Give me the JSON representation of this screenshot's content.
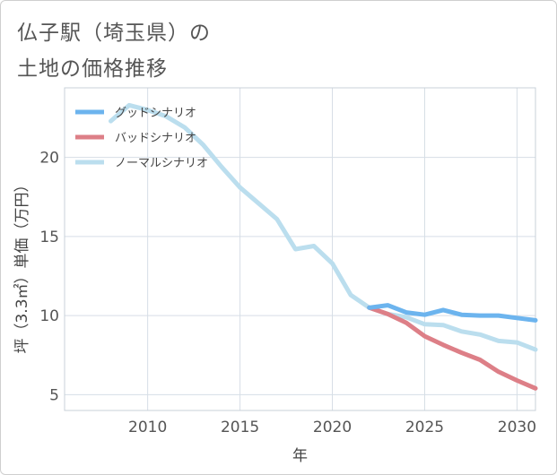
{
  "colors": {
    "good": "#6cb4ee",
    "bad": "#dd7f87",
    "normal": "#bbdeee",
    "grid": "#d6dee6",
    "axis": "#555555"
  },
  "chart_data": {
    "type": "line",
    "title": [
      "仏子駅（埼玉県）の",
      "土地の価格推移"
    ],
    "xlabel": "年",
    "ylabel": "坪（3.3㎡）単価（万円）",
    "xlim": [
      2005.5,
      2031
    ],
    "ylim": [
      4,
      24.4
    ],
    "xticks": [
      2010,
      2015,
      2020,
      2025,
      2030
    ],
    "yticks": [
      5,
      10,
      15,
      20
    ],
    "grid": true,
    "legend_position": "top-left",
    "series": [
      {
        "name": "グッドシナリオ",
        "color_key": "good",
        "x": [
          2022,
          2023,
          2024,
          2025,
          2026,
          2027,
          2028,
          2029,
          2030,
          2031
        ],
        "y": [
          10.5,
          10.65,
          10.2,
          10.05,
          10.35,
          10.05,
          10.0,
          10.0,
          9.85,
          9.7
        ]
      },
      {
        "name": "バッドシナリオ",
        "color_key": "bad",
        "x": [
          2022,
          2023,
          2024,
          2025,
          2026,
          2027,
          2028,
          2029,
          2030,
          2031
        ],
        "y": [
          10.5,
          10.1,
          9.55,
          8.7,
          8.15,
          7.65,
          7.2,
          6.45,
          5.9,
          5.4
        ]
      },
      {
        "name": "ノーマルシナリオ",
        "color_key": "normal",
        "x": [
          2008,
          2009,
          2010,
          2011,
          2012,
          2013,
          2014,
          2015,
          2016,
          2017,
          2018,
          2019,
          2020,
          2021,
          2022,
          2023,
          2024,
          2025,
          2026,
          2027,
          2028,
          2029,
          2030,
          2031
        ],
        "y": [
          22.3,
          23.3,
          23.0,
          22.6,
          21.9,
          20.8,
          19.4,
          18.1,
          17.1,
          16.1,
          14.2,
          14.4,
          13.3,
          11.3,
          10.5,
          10.1,
          9.9,
          9.45,
          9.4,
          9.0,
          8.8,
          8.4,
          8.3,
          7.85
        ]
      }
    ]
  }
}
